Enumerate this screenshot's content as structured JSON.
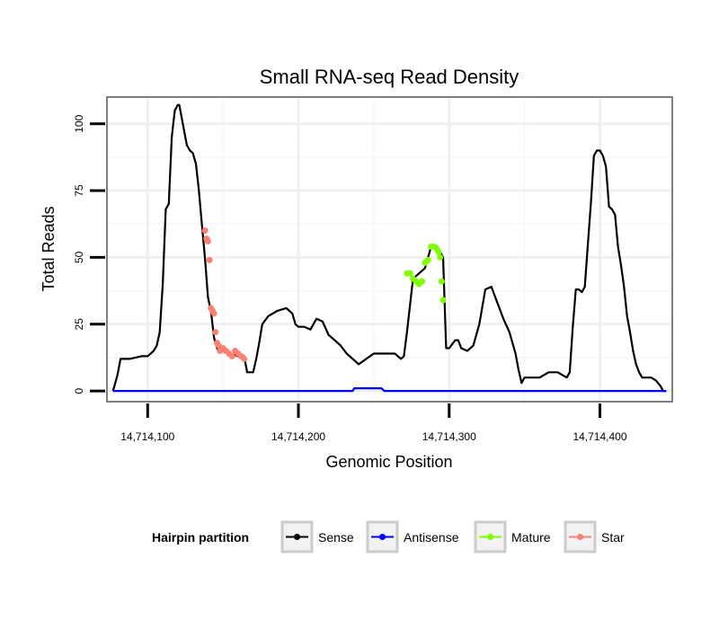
{
  "chart_data": {
    "type": "line",
    "title": "Small RNA-seq Read Density",
    "xlabel": "Genomic Position",
    "ylabel": "Total Reads",
    "xlim": [
      14714073,
      14714448
    ],
    "ylim": [
      -4,
      110
    ],
    "grid": true,
    "x_ticks": [
      {
        "value": 14714100,
        "label": "14,714,100"
      },
      {
        "value": 14714200,
        "label": "14,714,200"
      },
      {
        "value": 14714300,
        "label": "14,714,300"
      },
      {
        "value": 14714400,
        "label": "14,714,400"
      }
    ],
    "y_ticks": [
      {
        "value": 0,
        "label": "0"
      },
      {
        "value": 25,
        "label": "25"
      },
      {
        "value": 50,
        "label": "50"
      },
      {
        "value": 75,
        "label": "75"
      },
      {
        "value": 100,
        "label": "100"
      }
    ],
    "legend": {
      "title": "Hairpin partition",
      "position": "bottom",
      "items": [
        {
          "name": "Sense",
          "color": "#000000"
        },
        {
          "name": "Antisense",
          "color": "#0000FF"
        },
        {
          "name": "Mature",
          "color": "#7FFF00"
        },
        {
          "name": "Star",
          "color": "#FA8072"
        }
      ]
    },
    "series": [
      {
        "name": "Sense",
        "color": "#000000",
        "marker": "none",
        "x": [
          14714077,
          14714078,
          14714080,
          14714082,
          14714088,
          14714096,
          14714100,
          14714102,
          14714104,
          14714106,
          14714108,
          14714110,
          14714112,
          14714114,
          14714116,
          14714118,
          14714120,
          14714121,
          14714122,
          14714124,
          14714126,
          14714128,
          14714130,
          14714132,
          14714134,
          14714136,
          14714138,
          14714140,
          14714142,
          14714144,
          14714146,
          14714148,
          14714150,
          14714155,
          14714160,
          14714164,
          14714166,
          14714168,
          14714170,
          14714172,
          14714174,
          14714176,
          14714180,
          14714186,
          14714192,
          14714196,
          14714198,
          14714200,
          14714204,
          14714208,
          14714212,
          14714216,
          14714220,
          14714224,
          14714228,
          14714232,
          14714236,
          14714238,
          14714240,
          14714245,
          14714250,
          14714255,
          14714260,
          14714264,
          14714268,
          14714270,
          14714272,
          14714276,
          14714280,
          14714284,
          14714286,
          14714288,
          14714292,
          14714296,
          14714298,
          14714300,
          14714304,
          14714306,
          14714308,
          14714312,
          14714316,
          14714320,
          14714324,
          14714328,
          14714332,
          14714336,
          14714340,
          14714344,
          14714346,
          14714348,
          14714350,
          14714356,
          14714360,
          14714366,
          14714372,
          14714378,
          14714380,
          14714382,
          14714384,
          14714386,
          14714388,
          14714390,
          14714392,
          14714394,
          14714396,
          14714398,
          14714400,
          14714402,
          14714404,
          14714406,
          14714408,
          14714410,
          14714412,
          14714414,
          14714416,
          14714418,
          14714420,
          14714422,
          14714424,
          14714426,
          14714428,
          14714430,
          14714434,
          14714437,
          14714440,
          14714442,
          14714444
        ],
        "y": [
          0,
          2,
          6,
          12,
          12,
          13,
          13,
          14,
          15,
          17,
          22,
          40,
          68,
          70,
          95,
          105,
          107,
          107,
          104,
          98,
          92,
          90,
          89,
          85,
          75,
          62,
          50,
          35,
          30,
          20,
          16,
          15,
          15,
          14,
          13,
          13,
          7,
          7,
          7,
          12,
          18,
          25,
          28,
          30,
          31,
          29,
          25,
          24,
          24,
          23,
          27,
          26,
          21,
          19,
          17,
          14,
          12,
          11,
          10,
          12,
          14,
          14,
          14,
          14,
          12,
          13,
          22,
          42,
          44,
          46,
          50,
          54,
          54,
          50,
          16,
          16,
          19,
          19,
          16,
          15,
          17,
          25,
          38,
          39,
          33,
          27,
          22,
          14,
          8,
          3,
          5,
          5,
          5,
          7,
          7,
          5,
          7,
          24,
          38,
          38,
          37,
          39,
          55,
          70,
          88,
          90,
          90,
          88,
          84,
          69,
          68,
          66,
          54,
          47,
          39,
          28,
          22,
          15,
          10,
          7,
          5,
          5,
          5,
          4,
          2,
          0,
          0
        ]
      },
      {
        "name": "Antisense",
        "color": "#0000FF",
        "marker": "none",
        "x": [
          14714077,
          14714236,
          14714237,
          14714255,
          14714257,
          14714444
        ],
        "y": [
          0,
          0,
          1,
          1,
          0,
          0
        ]
      },
      {
        "name": "Mature",
        "color": "#7FFF00",
        "marker": "point",
        "x": [
          14714272,
          14714274,
          14714276,
          14714278,
          14714280,
          14714282,
          14714284,
          14714286,
          14714288,
          14714290,
          14714292,
          14714293,
          14714294,
          14714295,
          14714296
        ],
        "y": [
          44,
          44,
          42,
          41,
          40,
          41,
          48,
          49,
          54,
          54,
          53,
          52,
          50,
          41,
          34
        ]
      },
      {
        "name": "Star",
        "color": "#FA8072",
        "marker": "point",
        "x": [
          14714138,
          14714139,
          14714140,
          14714141,
          14714142,
          14714143,
          14714144,
          14714145,
          14714146,
          14714147,
          14714148,
          14714150,
          14714152,
          14714154,
          14714156,
          14714158,
          14714160,
          14714162,
          14714164
        ],
        "y": [
          60,
          57,
          56,
          49,
          31,
          30,
          29,
          22,
          18,
          17,
          15,
          16,
          15,
          14,
          13,
          15,
          14,
          13,
          12
        ]
      }
    ]
  }
}
